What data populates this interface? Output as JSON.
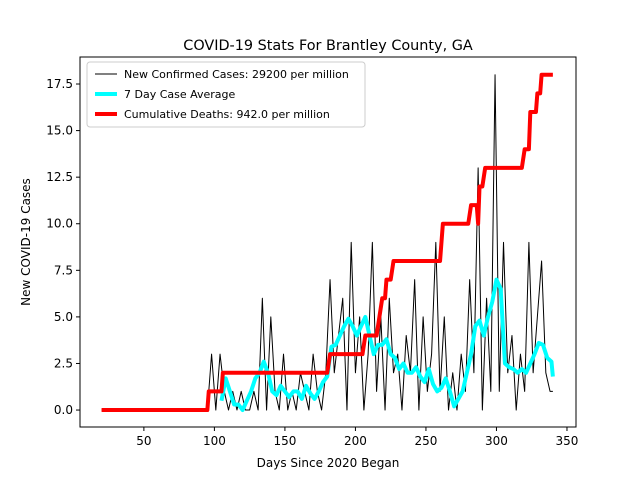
{
  "chart_data": {
    "type": "line",
    "title": "COVID-19 Stats For Brantley County, GA",
    "x_label": "Days Since 2020 Began",
    "y_label": "New COVID-19 Cases",
    "xlim": [
      4.7,
      356.4
    ],
    "ylim": [
      -0.91,
      18.95
    ],
    "xticks": [
      50,
      100,
      150,
      200,
      250,
      300,
      350
    ],
    "yticks": [
      {
        "value": 0,
        "label": "0.0"
      },
      {
        "value": 2.5,
        "label": "2.5"
      },
      {
        "value": 5,
        "label": "5.0"
      },
      {
        "value": 7.5,
        "label": "7.5"
      },
      {
        "value": 10,
        "label": "10.0"
      },
      {
        "value": 12.5,
        "label": "12.5"
      },
      {
        "value": 15,
        "label": "15.0"
      },
      {
        "value": 17.5,
        "label": "17.5"
      }
    ],
    "grid": false,
    "legend": "upper left",
    "series": [
      {
        "name": "New Confirmed Cases: 29200 per million",
        "color": "#000000",
        "width": 1,
        "x": [
          20,
          95,
          98,
          101,
          104,
          107,
          110,
          113,
          116,
          119,
          122,
          125,
          128,
          131,
          134,
          137,
          140,
          143,
          146,
          149,
          152,
          155,
          158,
          161,
          164,
          167,
          170,
          173,
          176,
          179,
          182,
          185,
          188,
          191,
          194,
          197,
          200,
          203,
          206,
          209,
          212,
          215,
          218,
          221,
          224,
          227,
          230,
          233,
          236,
          239,
          242,
          245,
          248,
          251,
          254,
          257,
          260,
          263,
          266,
          269,
          272,
          275,
          278,
          281,
          284,
          287,
          290,
          293,
          296,
          299,
          302,
          305,
          308,
          311,
          314,
          317,
          320,
          323,
          326,
          329,
          332,
          335,
          338,
          340
        ],
        "values": [
          0,
          0,
          3,
          0,
          3,
          1,
          0,
          1,
          0,
          1,
          0,
          0,
          1,
          0,
          6,
          0,
          5,
          1,
          0,
          3,
          0,
          1,
          0,
          2,
          1,
          0,
          3,
          1,
          0,
          2,
          7,
          2,
          4,
          6,
          0,
          9,
          2,
          5,
          0,
          3,
          9,
          1,
          5,
          0,
          6,
          2,
          3,
          0,
          4,
          2,
          7,
          0,
          5,
          1,
          3,
          9,
          1,
          5,
          0,
          2,
          0,
          3,
          1,
          7,
          2,
          13,
          0,
          6,
          1,
          18,
          1,
          9,
          2,
          4,
          0,
          3,
          1,
          9,
          2,
          5,
          8,
          2,
          1,
          1
        ]
      },
      {
        "name": "7 Day Case Average",
        "color": "#00ffff",
        "width": 4,
        "x": [
          105,
          108,
          111,
          114,
          117,
          120,
          123,
          126,
          129,
          132,
          135,
          138,
          141,
          144,
          147,
          150,
          153,
          156,
          159,
          162,
          165,
          168,
          171,
          174,
          177,
          180,
          183,
          186,
          189,
          192,
          195,
          198,
          201,
          204,
          207,
          210,
          213,
          216,
          219,
          222,
          225,
          228,
          231,
          234,
          237,
          240,
          243,
          246,
          249,
          252,
          255,
          258,
          261,
          264,
          267,
          270,
          273,
          276,
          279,
          282,
          285,
          288,
          291,
          294,
          297,
          300,
          303,
          306,
          309,
          312,
          315,
          318,
          321,
          324,
          327,
          330,
          333,
          336,
          339,
          340
        ],
        "values": [
          0.5,
          1.7,
          1,
          0.3,
          0.3,
          0,
          0.5,
          1,
          1.7,
          2,
          2.6,
          2,
          1,
          0.8,
          1.3,
          1,
          0.7,
          1,
          1,
          0.6,
          1.3,
          0.9,
          0.6,
          1,
          1.5,
          1.8,
          3.4,
          3.5,
          4,
          4.5,
          4.9,
          4.5,
          4,
          4.5,
          5,
          4,
          3,
          3.5,
          3.5,
          3.8,
          3,
          2.8,
          2.2,
          2.5,
          2,
          2,
          2.3,
          1.8,
          1.5,
          2.2,
          1.4,
          1,
          1.2,
          1.7,
          1,
          0.2,
          0.6,
          1,
          2,
          3,
          4.5,
          4.8,
          4,
          5,
          5.8,
          7,
          6.5,
          2.5,
          2.3,
          2.2,
          2,
          2.2,
          2,
          2.5,
          3,
          3.6,
          3.5,
          2.8,
          2.6,
          1.8
        ]
      },
      {
        "name": "Cumulative Deaths: 942.0 per million",
        "color": "#ff0000",
        "width": 4,
        "x": [
          20,
          95,
          96,
          105,
          106,
          180,
          182,
          205,
          207,
          215,
          217,
          219,
          221,
          222,
          225,
          227,
          260,
          262,
          280,
          282,
          286,
          287,
          288,
          290,
          292,
          318,
          320,
          323,
          324,
          328,
          329,
          331,
          332,
          340
        ],
        "values": [
          0,
          0,
          1,
          1,
          2,
          2,
          3,
          3,
          4,
          4,
          5,
          6,
          6,
          7,
          7,
          8,
          8,
          10,
          10,
          11,
          11,
          10,
          12,
          12,
          13,
          13,
          14,
          14,
          16,
          16,
          17,
          17,
          18,
          18
        ]
      }
    ]
  }
}
